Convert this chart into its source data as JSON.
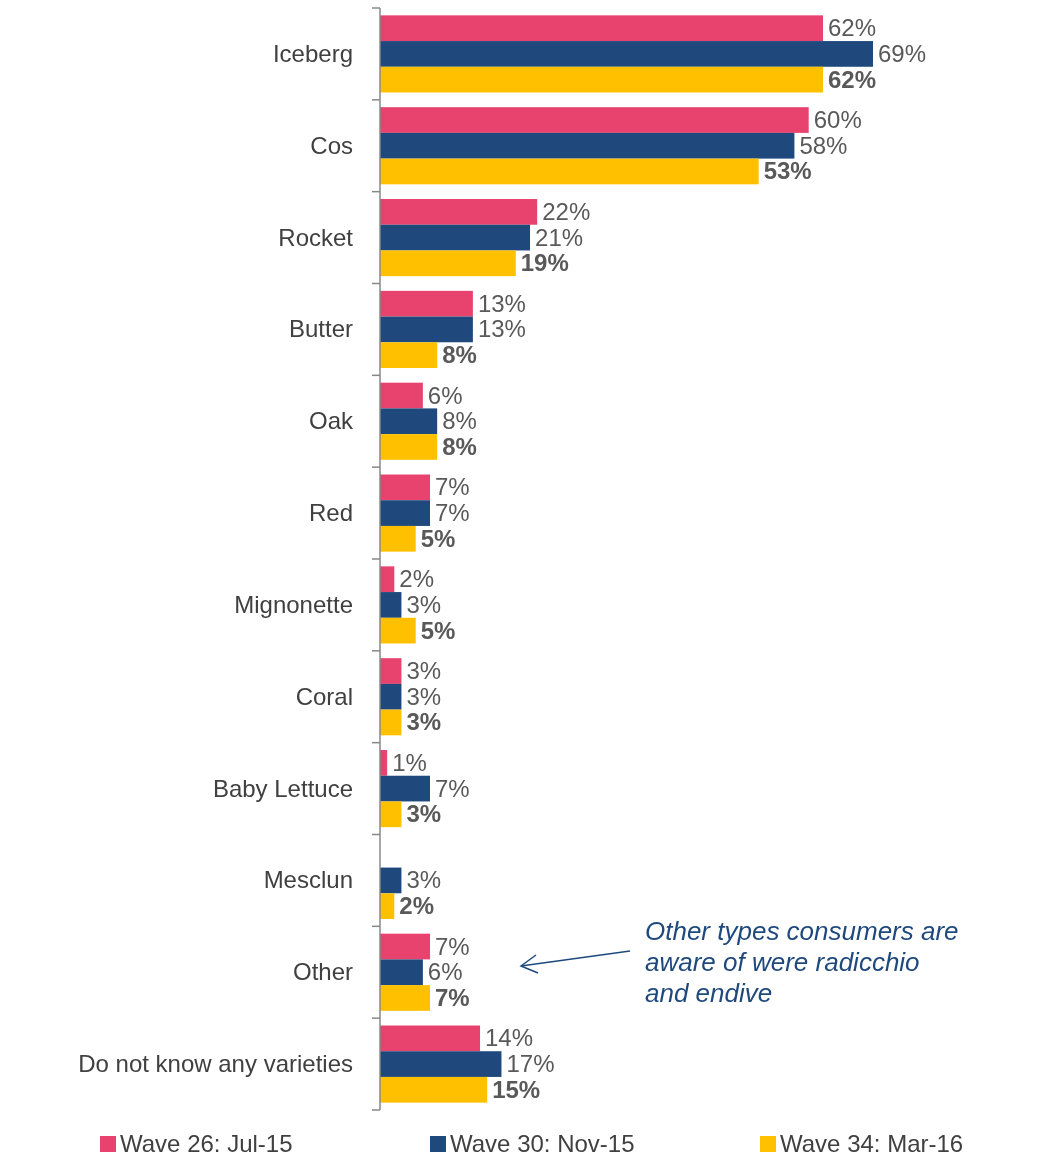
{
  "chart_data": {
    "type": "bar",
    "orientation": "horizontal",
    "categories": [
      "Iceberg",
      "Cos",
      "Rocket",
      "Butter",
      "Oak",
      "Red",
      "Mignonette",
      "Coral",
      "Baby Lettuce",
      "Mesclun",
      "Other",
      "Do not know any varieties"
    ],
    "series": [
      {
        "name": "Wave 26: Jul-15",
        "color": "#e8436e",
        "values": [
          62,
          60,
          22,
          13,
          6,
          7,
          2,
          3,
          1,
          null,
          7,
          14
        ],
        "value_labels": [
          "62%",
          "60%",
          "22%",
          "13%",
          "6%",
          "7%",
          "2%",
          "3%",
          "1%",
          null,
          "7%",
          "14%"
        ]
      },
      {
        "name": "Wave 30: Nov-15",
        "color": "#1f497d",
        "values": [
          69,
          58,
          21,
          13,
          8,
          7,
          3,
          3,
          7,
          3,
          6,
          17
        ],
        "value_labels": [
          "69%",
          "58%",
          "21%",
          "13%",
          "8%",
          "7%",
          "3%",
          "3%",
          "7%",
          "3%",
          "6%",
          "17%"
        ]
      },
      {
        "name": "Wave 34: Mar-16",
        "color": "#ffc000",
        "values": [
          62,
          53,
          19,
          8,
          8,
          5,
          5,
          3,
          3,
          2,
          7,
          15
        ],
        "value_labels": [
          "62%",
          "53%",
          "19%",
          "8%",
          "8%",
          "5%",
          "5%",
          "3%",
          "3%",
          "2%",
          "7%",
          "15%"
        ]
      }
    ],
    "annotations": [
      "Other types consumers are aware of were radicchio and endive"
    ],
    "legend": "bottom"
  }
}
